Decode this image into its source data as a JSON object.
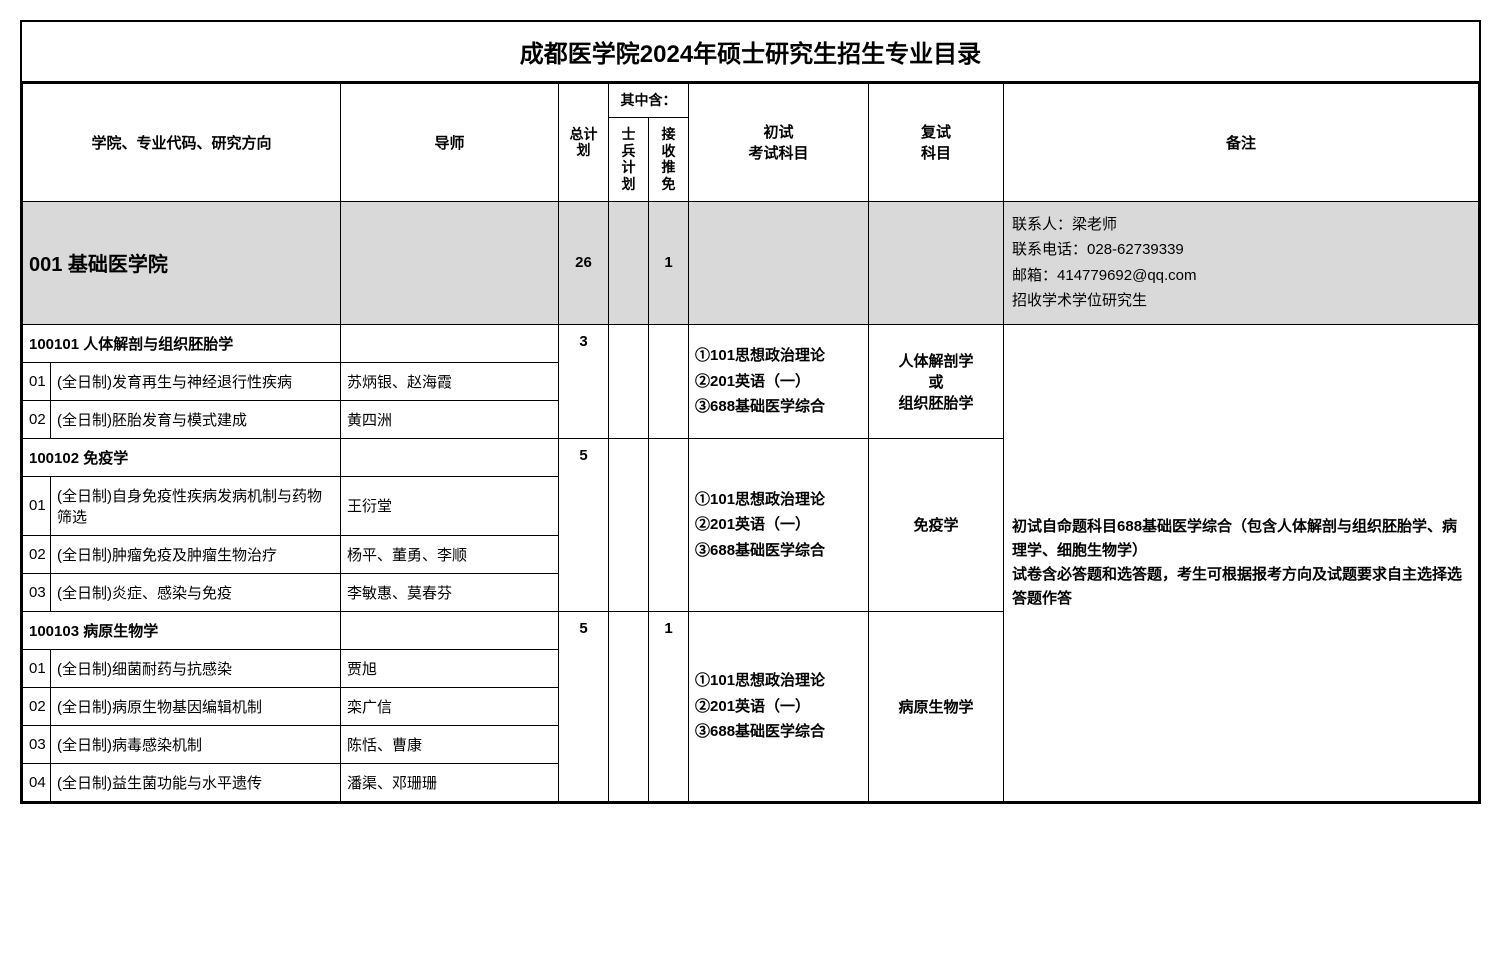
{
  "title": "成都医学院2024年硕士研究生招生专业目录",
  "headers": {
    "direction": "学院、专业代码、研究方向",
    "teacher": "导师",
    "total": "总计划",
    "including": "其中含：",
    "sub1": "士兵计划",
    "sub2": "接收推免",
    "exam": "初试\n考试科目",
    "retest": "复试\n科目",
    "remark": "备注"
  },
  "department": {
    "code": "001 基础医学院",
    "total": "26",
    "sub1": "",
    "sub2": "1",
    "contact": "联系人：梁老师\n联系电话：028-62739339\n邮箱：414779692@qq.com\n招收学术学位研究生"
  },
  "remark": "初试自命题科目688基础医学综合（包含人体解剖与组织胚胎学、病理学、细胞生物学）",
  "remark_bold": "试卷含必答题和选答题，考生可根据报考方向及试题要求自主选择选答题作答",
  "subjects": [
    {
      "code": "100101 人体解剖与组织胚胎学",
      "total": "3",
      "sub1": "",
      "sub2": "",
      "exam": "①101思想政治理论\n②201英语（一）\n③688基础医学综合",
      "retest": "人体解剖学\n或\n组织胚胎学",
      "rows": [
        {
          "idx": "01",
          "dir": "(全日制)发育再生与神经退行性疾病",
          "teacher": "苏炳银、赵海霞"
        },
        {
          "idx": "02",
          "dir": "(全日制)胚胎发育与模式建成",
          "teacher": "黄四洲"
        }
      ]
    },
    {
      "code": "100102 免疫学",
      "total": "5",
      "sub1": "",
      "sub2": "",
      "exam": "①101思想政治理论\n②201英语（一）\n③688基础医学综合",
      "retest": "免疫学",
      "rows": [
        {
          "idx": "01",
          "dir": "(全日制)自身免疫性疾病发病机制与药物筛选",
          "teacher": "王衍堂"
        },
        {
          "idx": "02",
          "dir": "(全日制)肿瘤免疫及肿瘤生物治疗",
          "teacher": "杨平、董勇、李顺"
        },
        {
          "idx": "03",
          "dir": "(全日制)炎症、感染与免疫",
          "teacher": "李敏惠、莫春芬"
        }
      ]
    },
    {
      "code": "100103 病原生物学",
      "total": "5",
      "sub1": "",
      "sub2": "1",
      "exam": "①101思想政治理论\n②201英语（一）\n③688基础医学综合",
      "retest": "病原生物学",
      "rows": [
        {
          "idx": "01",
          "dir": "(全日制)细菌耐药与抗感染",
          "teacher": "贾旭"
        },
        {
          "idx": "02",
          "dir": "(全日制)病原生物基因编辑机制",
          "teacher": "栾广信"
        },
        {
          "idx": "03",
          "dir": "(全日制)病毒感染机制",
          "teacher": "陈恬、曹康"
        },
        {
          "idx": "04",
          "dir": "(全日制)益生菌功能与水平遗传",
          "teacher": "潘渠、邓珊珊"
        }
      ]
    }
  ],
  "colors": {
    "border": "#000000",
    "gray": "#d9d9d9",
    "bg": "#ffffff"
  },
  "fonts": {
    "title": 24,
    "body": 15,
    "dept": 20
  }
}
